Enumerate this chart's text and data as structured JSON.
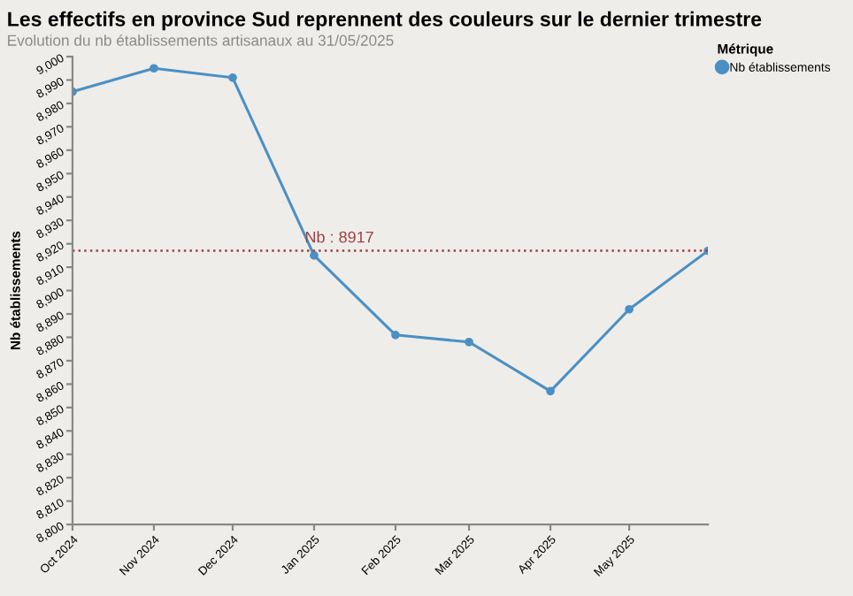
{
  "chart_data": {
    "type": "line",
    "title": "Les effectifs en province Sud reprennent des couleurs sur le dernier trimestre",
    "subtitle": "Evolution du nb établissements artisanaux au 31/05/2025",
    "ylabel": "Nb établissements",
    "legend_title": "Métrique",
    "x": [
      "2024-10-01",
      "2024-11-01",
      "2024-12-01",
      "2025-01-01",
      "2025-02-01",
      "2025-03-01",
      "2025-04-01",
      "2025-05-01",
      "2025-05-31"
    ],
    "series": [
      {
        "name": "Nb établissements",
        "color": "#4a90c4",
        "values": [
          8985,
          8995,
          8991,
          8915,
          8881,
          8878,
          8857,
          8892,
          8917
        ]
      }
    ],
    "xlim": [
      "2024-10-01",
      "2025-05-31"
    ],
    "xticks": [
      {
        "value": "2024-10-01",
        "label": "Oct 2024"
      },
      {
        "value": "2024-11-01",
        "label": "Nov 2024"
      },
      {
        "value": "2024-12-01",
        "label": "Dec 2024"
      },
      {
        "value": "2025-01-01",
        "label": "Jan 2025"
      },
      {
        "value": "2025-02-01",
        "label": "Feb 2025"
      },
      {
        "value": "2025-03-01",
        "label": "Mar 2025"
      },
      {
        "value": "2025-04-01",
        "label": "Apr 2025"
      },
      {
        "value": "2025-05-01",
        "label": "May 2025"
      }
    ],
    "ylim": [
      8800,
      9000
    ],
    "yticks": [
      {
        "value": 8800,
        "label": "8,800"
      },
      {
        "value": 8810,
        "label": "8,810"
      },
      {
        "value": 8820,
        "label": "8,820"
      },
      {
        "value": 8830,
        "label": "8,830"
      },
      {
        "value": 8840,
        "label": "8,840"
      },
      {
        "value": 8850,
        "label": "8,850"
      },
      {
        "value": 8860,
        "label": "8,860"
      },
      {
        "value": 8870,
        "label": "8,870"
      },
      {
        "value": 8880,
        "label": "8,880"
      },
      {
        "value": 8890,
        "label": "8,890"
      },
      {
        "value": 8900,
        "label": "8,900"
      },
      {
        "value": 8910,
        "label": "8,910"
      },
      {
        "value": 8920,
        "label": "8,920"
      },
      {
        "value": 8930,
        "label": "8,930"
      },
      {
        "value": 8940,
        "label": "8,940"
      },
      {
        "value": 8950,
        "label": "8,950"
      },
      {
        "value": 8960,
        "label": "8,960"
      },
      {
        "value": 8970,
        "label": "8,970"
      },
      {
        "value": 8980,
        "label": "8,980"
      },
      {
        "value": 8990,
        "label": "8,990"
      },
      {
        "value": 9000,
        "label": "9,000"
      }
    ],
    "ref_lines": [
      {
        "axis": "y",
        "value": 8917,
        "label": "Nb : 8917",
        "color": "#a04040",
        "line_style": "dotted"
      }
    ],
    "grid": false,
    "legend": "top right",
    "marker": "circle",
    "line_style": "solid"
  }
}
